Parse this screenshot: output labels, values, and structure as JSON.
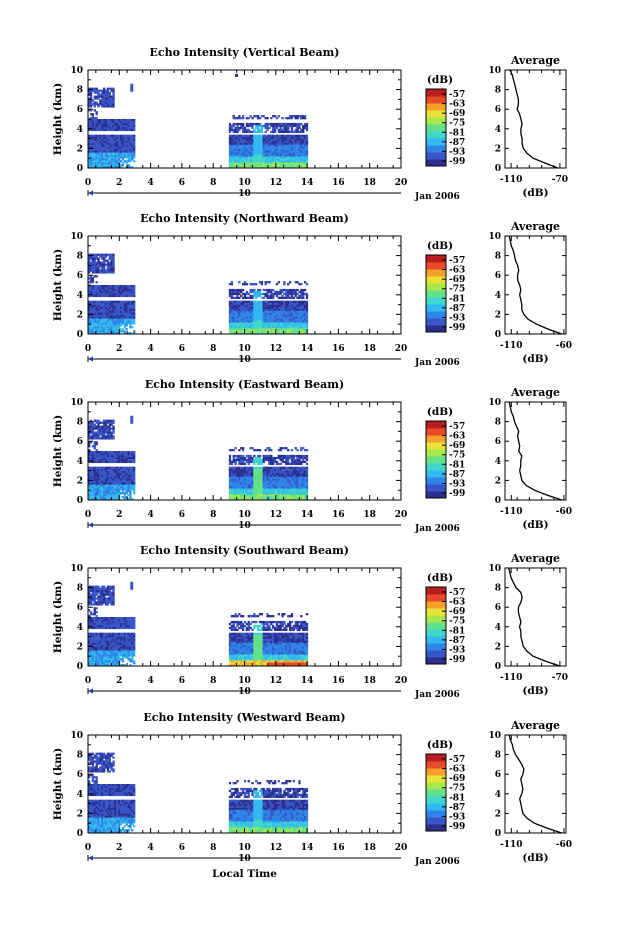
{
  "colors": {
    "axis": "#000000",
    "scale": [
      "#2c2f8e",
      "#3856c8",
      "#2f86e8",
      "#33b8f0",
      "#3fd6cc",
      "#63e08a",
      "#a8e84a",
      "#e8e23a",
      "#f5a02a",
      "#e84a28",
      "#b81e20"
    ]
  },
  "figure": {
    "date_label": "Jan 2006",
    "xlabel": "Local Time",
    "ylabel": "Height (km)",
    "colorbar_unit": "(dB)",
    "avg_title": "Average",
    "avg_unit": "(dB)",
    "xticks": [
      "0",
      "2",
      "4",
      "6",
      "8",
      "10",
      "12",
      "14",
      "16",
      "18",
      "20"
    ],
    "yticks": [
      "0",
      "2",
      "4",
      "6",
      "8",
      "10"
    ],
    "colorbar_ticks": [
      "-57",
      "-63",
      "-69",
      "-75",
      "-81",
      "-87",
      "-93",
      "-99"
    ],
    "day_marker": "10"
  },
  "chart_data": [
    {
      "type": "heatmap",
      "title": "Echo Intensity (Vertical Beam)",
      "xlim": [
        0,
        20
      ],
      "ylim": [
        0,
        10
      ],
      "clim": [
        -102,
        -54
      ],
      "avg_x_ticks": [
        "-110",
        "-70"
      ],
      "avg_xlim": [
        -115,
        -65
      ],
      "average_profile": {
        "height_km": [
          0,
          0.5,
          1,
          1.5,
          2,
          2.5,
          3,
          3.5,
          4,
          4.5,
          5,
          5.5,
          6,
          6.5,
          7,
          7.5,
          8,
          8.5,
          9,
          9.5,
          10
        ],
        "db": [
          -72,
          -82,
          -92,
          -97,
          -100,
          -101,
          -101,
          -102,
          -102,
          -101,
          -102,
          -103,
          -105,
          -104,
          -104,
          -105,
          -106,
          -107,
          -108,
          -109,
          -111
        ]
      }
    },
    {
      "type": "heatmap",
      "title": "Echo Intensity (Northward Beam)",
      "xlim": [
        0,
        20
      ],
      "ylim": [
        0,
        10
      ],
      "clim": [
        -102,
        -54
      ],
      "avg_x_ticks": [
        "-110",
        "-60"
      ],
      "avg_xlim": [
        -116,
        -58
      ],
      "average_profile": {
        "height_km": [
          0,
          0.5,
          1,
          1.5,
          2,
          2.5,
          3,
          3.5,
          4,
          4.5,
          5,
          5.5,
          6,
          6.5,
          7,
          7.5,
          8,
          8.5,
          9,
          9.5,
          10
        ],
        "db": [
          -62,
          -75,
          -86,
          -94,
          -98,
          -100,
          -100,
          -101,
          -102,
          -101,
          -102,
          -104,
          -104,
          -103,
          -104,
          -106,
          -107,
          -108,
          -110,
          -111,
          -112
        ]
      }
    },
    {
      "type": "heatmap",
      "title": "Echo Intensity (Eastward Beam)",
      "xlim": [
        0,
        20
      ],
      "ylim": [
        0,
        10
      ],
      "clim": [
        -102,
        -54
      ],
      "avg_x_ticks": [
        "-110",
        "-60"
      ],
      "avg_xlim": [
        -116,
        -58
      ],
      "average_profile": {
        "height_km": [
          0,
          0.5,
          1,
          1.5,
          2,
          2.5,
          3,
          3.5,
          4,
          4.5,
          5,
          5.5,
          6,
          6.5,
          7,
          7.5,
          8,
          8.5,
          9,
          9.5,
          10
        ],
        "db": [
          -62,
          -76,
          -88,
          -96,
          -100,
          -101,
          -102,
          -101,
          -101,
          -100,
          -103,
          -102,
          -103,
          -104,
          -103,
          -105,
          -107,
          -108,
          -110,
          -111,
          -112
        ]
      }
    },
    {
      "type": "heatmap",
      "title": "Echo Intensity (Southward Beam)",
      "xlim": [
        0,
        20
      ],
      "ylim": [
        0,
        10
      ],
      "clim": [
        -102,
        -54
      ],
      "avg_x_ticks": [
        "-110",
        "-70"
      ],
      "avg_xlim": [
        -115,
        -65
      ],
      "average_profile": {
        "height_km": [
          0,
          0.5,
          1,
          1.5,
          2,
          2.5,
          3,
          3.5,
          4,
          4.5,
          5,
          5.5,
          6,
          6.5,
          7,
          7.5,
          8,
          8.5,
          9,
          9.5,
          10
        ],
        "db": [
          -70,
          -82,
          -92,
          -97,
          -100,
          -101,
          -102,
          -102,
          -103,
          -102,
          -103,
          -104,
          -104,
          -102,
          -101,
          -102,
          -106,
          -108,
          -110,
          -111,
          -112
        ]
      }
    },
    {
      "type": "heatmap",
      "title": "Echo Intensity (Westward Beam)",
      "xlim": [
        0,
        20
      ],
      "ylim": [
        0,
        10
      ],
      "clim": [
        -102,
        -54
      ],
      "avg_x_ticks": [
        "-110",
        "-60"
      ],
      "avg_xlim": [
        -116,
        -58
      ],
      "average_profile": {
        "height_km": [
          0,
          0.5,
          1,
          1.5,
          2,
          2.5,
          3,
          3.5,
          4,
          4.5,
          5,
          5.5,
          6,
          6.5,
          7,
          7.5,
          8,
          8.5,
          9,
          9.5,
          10
        ],
        "db": [
          -62,
          -76,
          -88,
          -95,
          -99,
          -100,
          -101,
          -102,
          -100,
          -99,
          -100,
          -101,
          -99,
          -98,
          -100,
          -103,
          -106,
          -108,
          -109,
          -111,
          -112
        ]
      }
    }
  ]
}
